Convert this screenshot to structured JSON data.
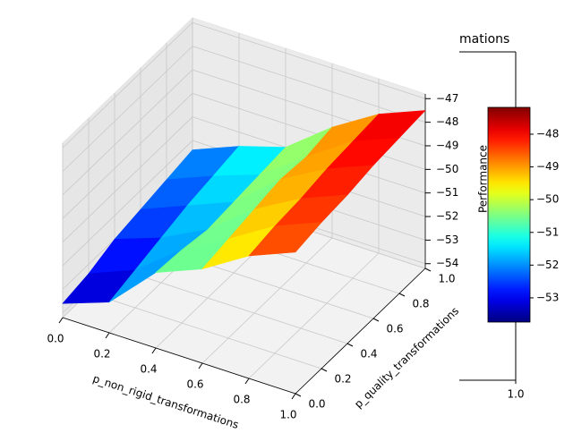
{
  "chart_data": {
    "type": "surface3d",
    "x_label": "p_non_rigid_transformations",
    "y_label": "p_quality_transformations",
    "x": [
      0,
      0.2,
      0.4,
      0.6,
      0.8,
      1.0
    ],
    "y": [
      0,
      0.2,
      0.4,
      0.6,
      0.8,
      1.0
    ],
    "z": [
      [
        -53.6,
        -52.9,
        -51.0,
        -50.2,
        -49.0,
        -48.2
      ],
      [
        -53.4,
        -52.6,
        -51.1,
        -50.0,
        -48.8,
        -48.0
      ],
      [
        -53.0,
        -52.3,
        -51.3,
        -49.8,
        -48.7,
        -47.9
      ],
      [
        -52.8,
        -52.0,
        -51.2,
        -49.6,
        -48.5,
        -47.7
      ],
      [
        -52.6,
        -51.8,
        -51.1,
        -49.7,
        -48.4,
        -47.6
      ],
      [
        -52.4,
        -51.6,
        -51.0,
        -49.5,
        -48.3,
        -47.5
      ]
    ],
    "colormap": "jet",
    "xlim": [
      0,
      1
    ],
    "ylim": [
      0,
      1
    ],
    "zlim": [
      -54.2,
      -46.8
    ],
    "xticks": [
      {
        "value": 0,
        "label": "0.0"
      },
      {
        "value": 0.2,
        "label": "0.2"
      },
      {
        "value": 0.4,
        "label": "0.4"
      },
      {
        "value": 0.6,
        "label": "0.6"
      },
      {
        "value": 0.8,
        "label": "0.8"
      },
      {
        "value": 1,
        "label": "1.0"
      }
    ],
    "yticks": [
      {
        "value": 0,
        "label": "0.0"
      },
      {
        "value": 0.2,
        "label": "0.2"
      },
      {
        "value": 0.4,
        "label": "0.4"
      },
      {
        "value": 0.6,
        "label": "0.6"
      },
      {
        "value": 0.8,
        "label": "0.8"
      },
      {
        "value": 1,
        "label": "1.0"
      }
    ],
    "zticks": [
      {
        "value": -54,
        "label": "−54"
      },
      {
        "value": -53,
        "label": "−53"
      },
      {
        "value": -52,
        "label": "−52"
      },
      {
        "value": -51,
        "label": "−51"
      },
      {
        "value": -50,
        "label": "−50"
      },
      {
        "value": -49,
        "label": "−49"
      },
      {
        "value": -48,
        "label": "−48"
      },
      {
        "value": -47,
        "label": "−47"
      }
    ],
    "colorbar": {
      "label": "Performance",
      "clim": [
        -53.74,
        -47.18
      ],
      "ticks": [
        {
          "value": -53,
          "label": "−53"
        },
        {
          "value": -52,
          "label": "−52"
        },
        {
          "value": -51,
          "label": "−51"
        },
        {
          "value": -50,
          "label": "−50"
        },
        {
          "value": -49,
          "label": "−49"
        },
        {
          "value": -48,
          "label": "−48"
        }
      ]
    },
    "inset": {
      "title": "mations",
      "xticks": [
        {
          "value": 1,
          "label": "1.0"
        }
      ]
    }
  }
}
